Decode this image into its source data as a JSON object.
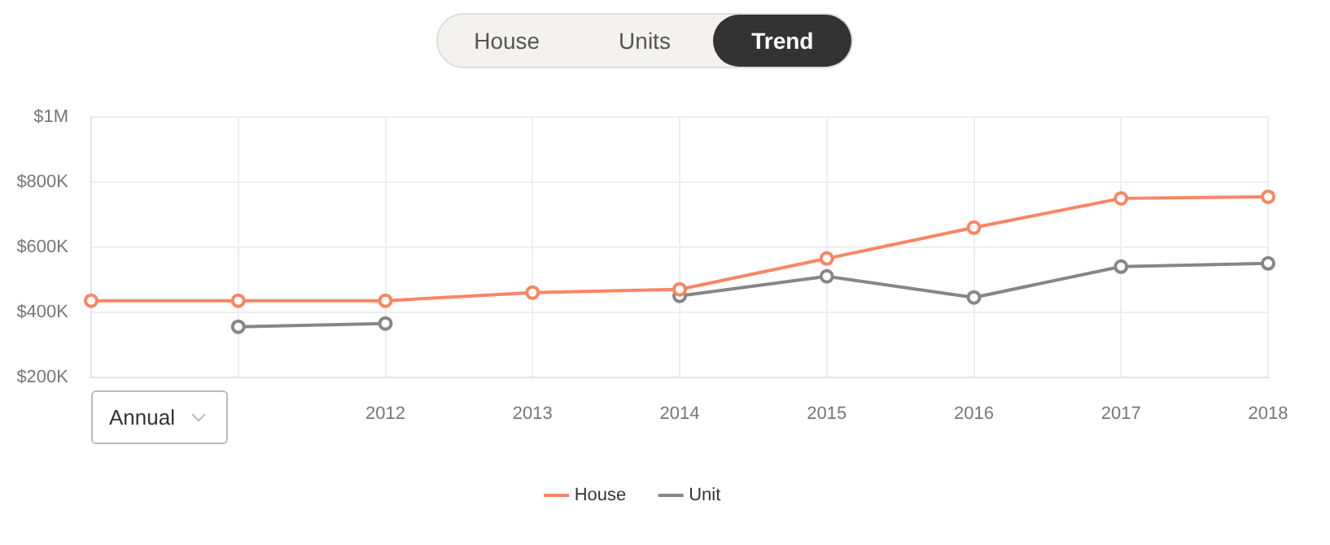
{
  "chart_data": {
    "type": "line",
    "categories": [
      null,
      null,
      "2012",
      "2013",
      "2014",
      "2015",
      "2016",
      "2017",
      "2018"
    ],
    "series": [
      {
        "name": "House",
        "color": "#fa8564",
        "values": [
          435000,
          435000,
          435000,
          460000,
          470000,
          565000,
          660000,
          750000,
          755000
        ]
      },
      {
        "name": "Unit",
        "color": "#868686",
        "values": [
          null,
          355000,
          365000,
          null,
          450000,
          510000,
          445000,
          540000,
          550000
        ]
      }
    ],
    "ylim": [
      200000,
      1000000
    ],
    "yticks": [
      {
        "value": 200000,
        "label": "$200K"
      },
      {
        "value": 400000,
        "label": "$400K"
      },
      {
        "value": 600000,
        "label": "$600K"
      },
      {
        "value": 800000,
        "label": "$800K"
      },
      {
        "value": 1000000,
        "label": "$1M"
      }
    ],
    "grid": true,
    "legend": "bottom",
    "marker": "circle",
    "line_style": "solid",
    "annotations": [
      "House",
      "Units",
      "Trend",
      "Annual"
    ]
  }
}
